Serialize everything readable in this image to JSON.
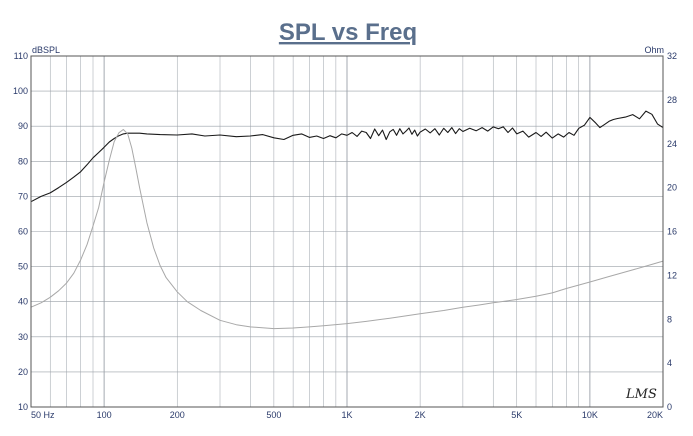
{
  "chart_data": {
    "type": "line",
    "title": "SPL vs Freq",
    "xscale": "log",
    "xlim": [
      50,
      20000
    ],
    "x_tick_labels": [
      {
        "x": 50,
        "label": "50  Hz"
      },
      {
        "x": 100,
        "label": "100"
      },
      {
        "x": 200,
        "label": "200"
      },
      {
        "x": 500,
        "label": "500"
      },
      {
        "x": 1000,
        "label": "1K"
      },
      {
        "x": 2000,
        "label": "2K"
      },
      {
        "x": 5000,
        "label": "5K"
      },
      {
        "x": 10000,
        "label": "10K"
      },
      {
        "x": 20000,
        "label": "20K"
      }
    ],
    "y_left": {
      "unit": "dBSPL",
      "lim": [
        10,
        110
      ],
      "ticks": [
        10,
        20,
        30,
        40,
        50,
        60,
        70,
        80,
        90,
        100,
        110
      ]
    },
    "y_right": {
      "unit": "Ohm",
      "lim": [
        0,
        32
      ],
      "ticks": [
        0,
        4,
        8,
        12,
        16,
        20,
        24,
        28,
        32
      ]
    },
    "grid": true,
    "signature": "LMS",
    "colors": {
      "spl": "#1a1a1a",
      "impedance": "#a8a8a8",
      "grid": "#9aa0a8",
      "frame": "#555555"
    },
    "series": [
      {
        "axis": "left",
        "x": [
          50,
          55,
          60,
          65,
          70,
          75,
          80,
          85,
          90,
          95,
          100,
          105,
          110,
          115,
          120,
          125,
          130,
          140,
          150,
          170,
          200,
          230,
          260,
          300,
          350,
          400,
          450,
          500,
          550,
          600,
          650,
          700,
          750,
          800,
          850,
          900,
          950,
          1000,
          1050,
          1100,
          1150,
          1200,
          1250,
          1300,
          1350,
          1400,
          1450,
          1500,
          1550,
          1600,
          1650,
          1700,
          1750,
          1800,
          1850,
          1900,
          1950,
          2000,
          2100,
          2200,
          2300,
          2400,
          2500,
          2600,
          2700,
          2800,
          2900,
          3000,
          3200,
          3400,
          3600,
          3800,
          4000,
          4200,
          4400,
          4600,
          4800,
          5000,
          5300,
          5600,
          6000,
          6300,
          6600,
          7000,
          7400,
          7800,
          8200,
          8600,
          9000,
          9500,
          10000,
          10500,
          11000,
          11500,
          12000,
          12500,
          13000,
          14000,
          15000,
          16000,
          17000,
          18000,
          19000,
          20000
        ],
        "y": [
          68.5,
          70,
          71,
          72.5,
          74,
          75.5,
          77,
          79,
          81,
          82.5,
          84,
          85.5,
          86.5,
          87.3,
          87.8,
          88,
          88,
          88,
          87.8,
          87.6,
          87.5,
          87.8,
          87.2,
          87.5,
          87,
          87.2,
          87.6,
          86.7,
          86.2,
          87.4,
          87.8,
          86.8,
          87.2,
          86.5,
          87.3,
          86.7,
          87.8,
          87.4,
          88.2,
          87.1,
          88.6,
          88.2,
          86.5,
          89.2,
          87.3,
          88.9,
          86.2,
          88.4,
          89.1,
          87.4,
          89.3,
          87.8,
          88.6,
          89.5,
          87.7,
          88.9,
          87.2,
          88.3,
          89.2,
          88.1,
          89.3,
          87.5,
          89.4,
          88.2,
          89.6,
          87.9,
          89.3,
          88.5,
          89.4,
          88.7,
          89.6,
          88.6,
          89.8,
          89.3,
          89.8,
          88.2,
          89.5,
          87.8,
          88.6,
          86.9,
          88.2,
          87.1,
          88.3,
          86.6,
          87.8,
          86.9,
          88.2,
          87.4,
          89.4,
          90.3,
          92.5,
          91.1,
          89.6,
          90.5,
          91.4,
          91.9,
          92.2,
          92.6,
          93.3,
          92.1,
          94.3,
          93.4,
          90.6,
          89.6
        ]
      },
      {
        "axis": "right",
        "x": [
          50,
          55,
          60,
          65,
          70,
          75,
          80,
          85,
          90,
          95,
          100,
          105,
          110,
          115,
          120,
          125,
          130,
          135,
          140,
          150,
          160,
          170,
          180,
          200,
          220,
          250,
          300,
          350,
          400,
          500,
          600,
          700,
          800,
          1000,
          1200,
          1500,
          2000,
          2500,
          3000,
          3500,
          4000,
          5000,
          6000,
          7000,
          8000,
          10000,
          12000,
          15000,
          18000,
          20000
        ],
        "y": [
          9.1,
          9.5,
          10,
          10.6,
          11.3,
          12.2,
          13.4,
          14.8,
          16.5,
          18.2,
          20.5,
          22.5,
          24.2,
          25,
          25.3,
          24.9,
          23.6,
          21.8,
          20,
          16.8,
          14.5,
          12.9,
          11.8,
          10.5,
          9.6,
          8.8,
          7.9,
          7.5,
          7.3,
          7.15,
          7.2,
          7.3,
          7.4,
          7.6,
          7.8,
          8.1,
          8.5,
          8.8,
          9.1,
          9.3,
          9.5,
          9.8,
          10.1,
          10.4,
          10.8,
          11.4,
          11.9,
          12.5,
          13,
          13.3
        ]
      }
    ]
  }
}
